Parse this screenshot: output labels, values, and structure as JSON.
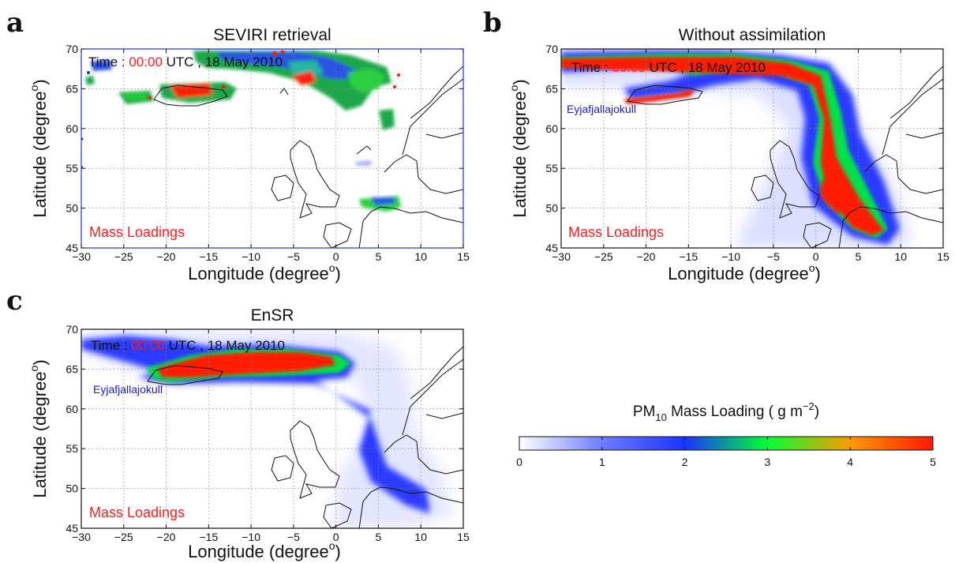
{
  "colors": {
    "ramp": [
      "#ffffff",
      "#1a33ff",
      "#00ff33",
      "#ff1a00"
    ],
    "title_red": "#ff1a1a",
    "label_blue": "#1a1acc"
  },
  "shared": {
    "time_prefix": "Time : ",
    "time_value": "00:00",
    "time_suffix": " UTC , 18 May 2010",
    "mass_label": "Mass Loadings",
    "volcano_label": "Eyjafjallajokull",
    "xlabel": "Longitude (degree",
    "ylabel": "Latitude (degree",
    "unit_sup": "o"
  },
  "panels": [
    {
      "letter": "a",
      "title": "SEVIRI retrieval",
      "show_volcano": false
    },
    {
      "letter": "b",
      "title": "Without assimilation",
      "show_volcano": true
    },
    {
      "letter": "c",
      "title": "EnSR",
      "show_volcano": true
    }
  ],
  "colorbar": {
    "title_pre": "PM",
    "title_sub": "10",
    "title_post": " Mass Loading ( g m",
    "title_sup": "−2",
    "title_end": ")",
    "ticks": [
      "0",
      "1",
      "2",
      "3",
      "4",
      "5"
    ],
    "range": [
      0,
      5
    ]
  },
  "chart_data": {
    "type": "heatmap",
    "description_units": "PM10 mass loading g m^-2 over lon/lat map",
    "xlim": [
      -30,
      15
    ],
    "ylim": [
      45,
      70
    ],
    "xticks": [
      "−30",
      "−25",
      "−20",
      "−15",
      "−10",
      "−5",
      "0",
      "5",
      "10",
      "15"
    ],
    "yticks": [
      "70",
      "65",
      "60",
      "55",
      "50",
      "45"
    ],
    "grid": true,
    "volcano": {
      "lon": -19.6,
      "lat": 63.6
    }
  }
}
